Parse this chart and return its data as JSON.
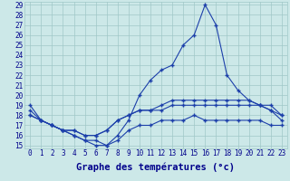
{
  "hours": [
    0,
    1,
    2,
    3,
    4,
    5,
    6,
    7,
    8,
    9,
    10,
    11,
    12,
    13,
    14,
    15,
    16,
    17,
    18,
    19,
    20,
    21,
    22,
    23
  ],
  "line1": [
    19,
    17.5,
    17,
    16.5,
    16,
    15.5,
    15,
    15,
    16,
    17.5,
    20,
    21.5,
    22.5,
    23,
    25,
    26,
    29,
    27,
    22,
    20.5,
    19.5,
    19,
    19,
    18
  ],
  "line2": [
    18.5,
    17.5,
    17,
    16.5,
    16.5,
    16,
    16,
    16.5,
    17.5,
    18,
    18.5,
    18.5,
    19,
    19.5,
    19.5,
    19.5,
    19.5,
    19.5,
    19.5,
    19.5,
    19.5,
    19,
    18.5,
    18
  ],
  "line3": [
    18,
    17.5,
    17,
    16.5,
    16.5,
    16,
    16,
    16.5,
    17.5,
    18,
    18.5,
    18.5,
    18.5,
    19,
    19,
    19,
    19,
    19,
    19,
    19,
    19,
    19,
    18.5,
    17.5
  ],
  "line4": [
    18,
    17.5,
    17,
    16.5,
    16,
    15.5,
    15.5,
    15,
    15.5,
    16.5,
    17,
    17,
    17.5,
    17.5,
    17.5,
    18,
    17.5,
    17.5,
    17.5,
    17.5,
    17.5,
    17.5,
    17,
    17
  ],
  "line_color": "#1c3faa",
  "bg_color": "#cce8e8",
  "grid_color": "#a0c8c8",
  "ylim_min": 15,
  "ylim_max": 29,
  "yticks": [
    15,
    16,
    17,
    18,
    19,
    20,
    21,
    22,
    23,
    24,
    25,
    26,
    27,
    28,
    29
  ],
  "xlabel": "Graphe des températures (°c)",
  "text_color": "#00008b",
  "tick_fontsize": 5.5,
  "xlabel_fontsize": 7.5
}
